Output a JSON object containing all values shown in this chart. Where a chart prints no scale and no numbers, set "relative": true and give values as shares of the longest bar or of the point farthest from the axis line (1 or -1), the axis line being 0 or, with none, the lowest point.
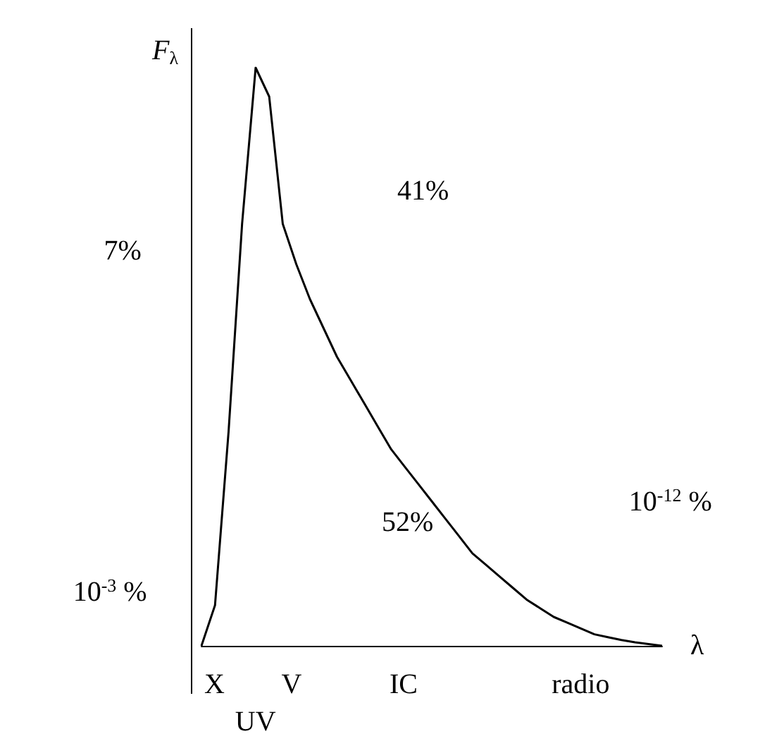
{
  "chart_data": {
    "type": "line",
    "relative": true,
    "xlabel": "λ",
    "ylabel": "F$_{λ}$",
    "color": "#000000",
    "marker": "none",
    "grid": false,
    "categories": [
      null,
      null,
      null,
      null,
      null,
      null,
      null,
      null,
      null,
      null,
      null,
      null,
      null,
      null,
      null,
      null,
      null,
      null,
      null,
      null,
      null,
      null,
      null,
      null,
      null,
      null,
      null,
      null,
      null,
      null,
      null,
      null,
      null,
      null,
      null
    ],
    "values": [
      0,
      0.07,
      0.37,
      0.73,
      1,
      0.95,
      0.73,
      0.66,
      0.6,
      0.55,
      0.5,
      0.46,
      0.42,
      0.38,
      0.34,
      0.31,
      0.28,
      0.25,
      0.22,
      0.19,
      0.16,
      0.14,
      0.12,
      0.1,
      0.08,
      0.065,
      0.05,
      0.04,
      0.03,
      0.02,
      0.015,
      0.01,
      0.006,
      0.003,
      0
    ],
    "annotations": [
      "X",
      "UV",
      "V",
      "IC",
      "radio",
      "10$^{-3}$ %",
      "7%",
      "41%",
      "52%",
      "10$^{-12}$ %"
    ]
  }
}
